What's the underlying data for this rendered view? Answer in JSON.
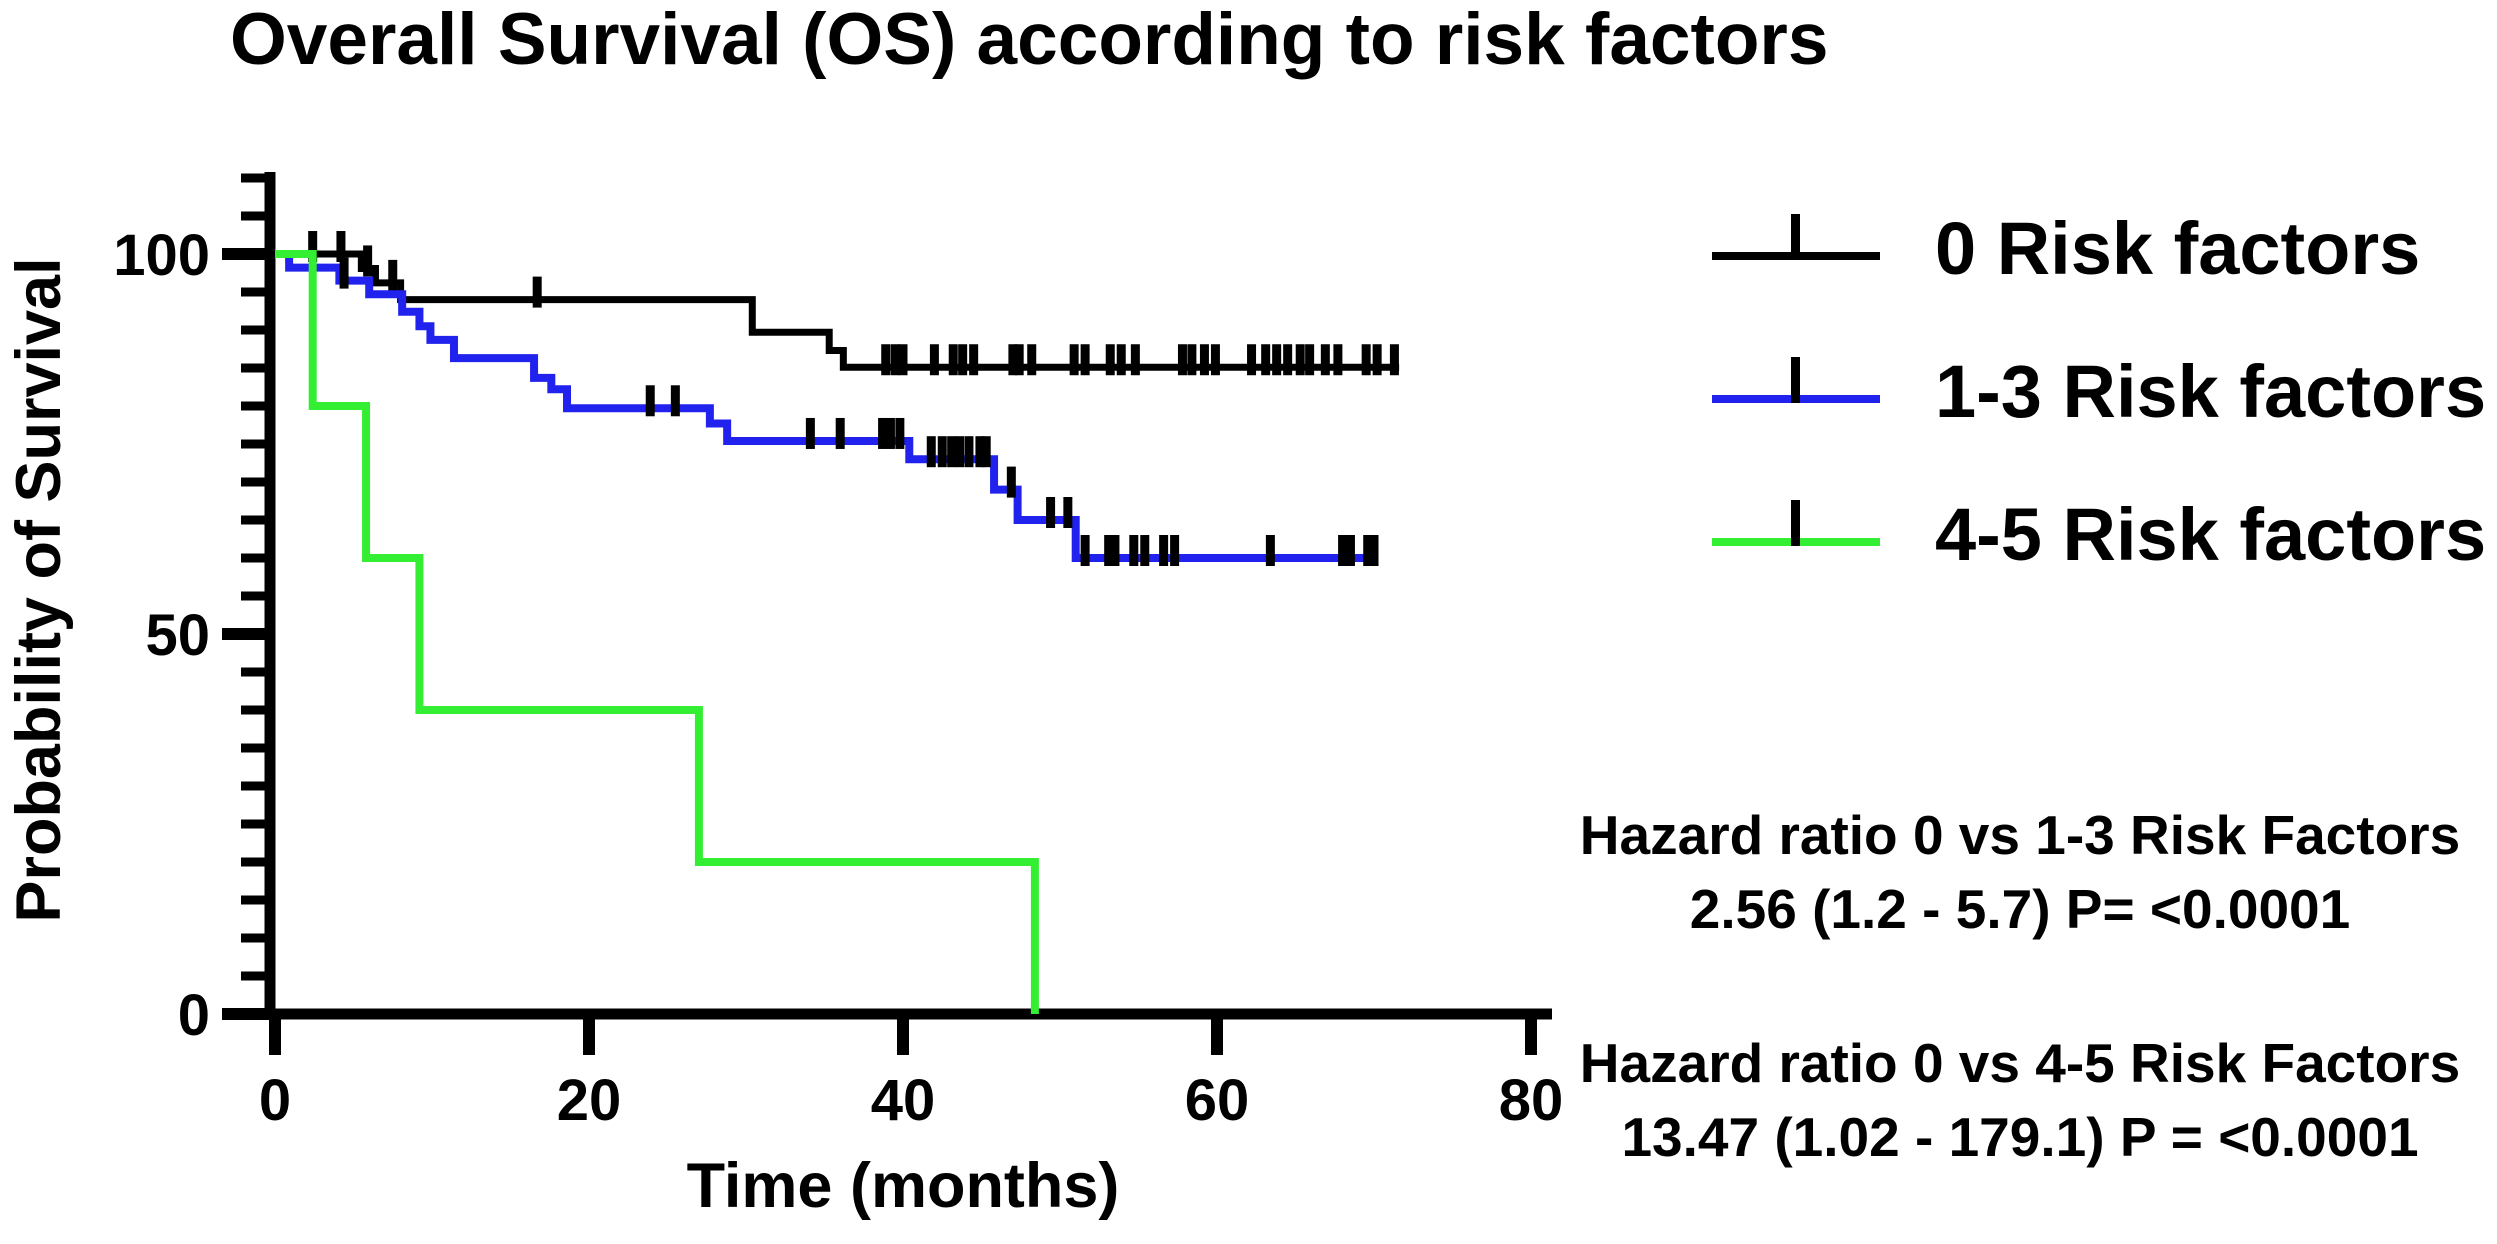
{
  "figure": {
    "title": "Overall Survival (OS) according to risk factors"
  },
  "chart_data": {
    "type": "line",
    "subtype": "kaplan-meier-step",
    "title": "Overall Survival (OS) according to risk factors",
    "xlabel": "Time (months)",
    "ylabel": "Probability of Survival",
    "xlim": [
      0,
      82
    ],
    "ylim": [
      0,
      110
    ],
    "x_ticks": [
      0,
      20,
      40,
      60,
      80
    ],
    "y_ticks": [
      0,
      50,
      100
    ],
    "y_minor_tick_step": 5,
    "grid": false,
    "legend_position": "right",
    "axis_color": "#000000",
    "censor_tick_color": "#000000",
    "series": [
      {
        "name": "0 Risk factors",
        "color": "#000000",
        "start_value": 100,
        "end_month": 71.6,
        "steps": [
          [
            5.5,
            98.1
          ],
          [
            6.4,
            96.2
          ],
          [
            8.0,
            94.0
          ],
          [
            30.4,
            89.7
          ],
          [
            35.3,
            87.3
          ],
          [
            36.2,
            85.1
          ]
        ],
        "censors": [
          [
            2.4,
            100
          ],
          [
            4.2,
            100
          ],
          [
            5.9,
            98.1
          ],
          [
            7.5,
            96.2
          ],
          [
            16.7,
            94.0
          ],
          [
            38.9,
            85.1
          ],
          [
            39.5,
            85.1
          ],
          [
            40.0,
            85.1
          ],
          [
            42.0,
            85.1
          ],
          [
            43.2,
            85.1
          ],
          [
            43.8,
            85.1
          ],
          [
            44.5,
            85.1
          ],
          [
            47.0,
            85.1
          ],
          [
            47.4,
            85.1
          ],
          [
            48.2,
            85.1
          ],
          [
            50.9,
            85.1
          ],
          [
            51.6,
            85.1
          ],
          [
            53.2,
            85.1
          ],
          [
            53.9,
            85.1
          ],
          [
            54.8,
            85.1
          ],
          [
            57.8,
            85.1
          ],
          [
            58.4,
            85.1
          ],
          [
            59.2,
            85.1
          ],
          [
            59.9,
            85.1
          ],
          [
            62.2,
            85.1
          ],
          [
            63.1,
            85.1
          ],
          [
            63.8,
            85.1
          ],
          [
            64.5,
            85.1
          ],
          [
            65.3,
            85.1
          ],
          [
            65.9,
            85.1
          ],
          [
            66.9,
            85.1
          ],
          [
            67.7,
            85.1
          ],
          [
            69.5,
            85.1
          ],
          [
            70.2,
            85.1
          ],
          [
            71.3,
            85.1
          ]
        ]
      },
      {
        "name": "1-3 Risk factors",
        "color": "#2222ee",
        "start_value": 100,
        "end_month": 70.0,
        "steps": [
          [
            0.9,
            98.2
          ],
          [
            4.1,
            96.5
          ],
          [
            6.0,
            94.7
          ],
          [
            8.1,
            92.4
          ],
          [
            9.2,
            90.5
          ],
          [
            9.9,
            88.7
          ],
          [
            11.4,
            86.3
          ],
          [
            16.5,
            83.7
          ],
          [
            17.6,
            82.2
          ],
          [
            18.6,
            79.7
          ],
          [
            27.7,
            77.7
          ],
          [
            28.8,
            75.4
          ],
          [
            40.4,
            73.0
          ],
          [
            45.8,
            69.0
          ],
          [
            47.3,
            65.0
          ],
          [
            51.0,
            60.0
          ]
        ],
        "censors": [
          [
            4.4,
            96.5
          ],
          [
            23.9,
            79.7
          ],
          [
            25.5,
            79.7
          ],
          [
            34.1,
            75.4
          ],
          [
            36.0,
            75.4
          ],
          [
            38.7,
            75.4
          ],
          [
            39.2,
            75.4
          ],
          [
            39.8,
            75.4
          ],
          [
            41.8,
            73.0
          ],
          [
            42.5,
            73.0
          ],
          [
            43.1,
            73.0
          ],
          [
            43.6,
            73.0
          ],
          [
            44.2,
            73.0
          ],
          [
            44.9,
            73.0
          ],
          [
            45.3,
            73.0
          ],
          [
            46.9,
            69.0
          ],
          [
            49.4,
            65.0
          ],
          [
            50.5,
            65.0
          ],
          [
            51.6,
            60.0
          ],
          [
            53.1,
            60.0
          ],
          [
            53.5,
            60.0
          ],
          [
            54.7,
            60.0
          ],
          [
            55.4,
            60.0
          ],
          [
            56.6,
            60.0
          ],
          [
            57.3,
            60.0
          ],
          [
            63.4,
            60.0
          ],
          [
            68.0,
            60.0
          ],
          [
            68.5,
            60.0
          ],
          [
            69.6,
            60.0
          ],
          [
            70.0,
            60.0
          ]
        ]
      },
      {
        "name": "4-5 Risk factors",
        "color": "#33ee33",
        "start_value": 100,
        "end_month": 48.4,
        "steps": [
          [
            2.4,
            80
          ],
          [
            5.8,
            60
          ],
          [
            9.2,
            40
          ],
          [
            27.0,
            20
          ],
          [
            48.4,
            0
          ]
        ],
        "censors": []
      }
    ]
  },
  "hazard_notes": [
    {
      "line1": "Hazard ratio 0 vs 1-3 Risk Factors",
      "line2": "2.56 (1.2 - 5.7) P= <0.0001"
    },
    {
      "line1": "Hazard ratio 0 vs 4-5 Risk Factors",
      "line2": "13.47 (1.02 - 179.1) P = <0.0001"
    }
  ]
}
